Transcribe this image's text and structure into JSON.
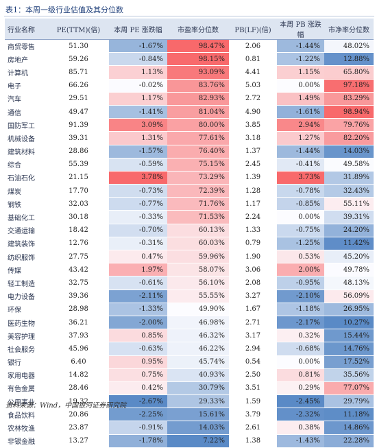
{
  "caption": "表1：本周一级行业估值及其分位数",
  "headers": [
    "行业名称",
    "PE(TTM)(倍)",
    "本周 PE 涨跌幅",
    "市盈率分位数",
    "PB(LF)(倍)",
    "本周 PB 涨跌幅",
    "市净率分位数"
  ],
  "rows": [
    [
      "商贸零售",
      "51.30",
      "-1.67%",
      "98.47%",
      "2.06",
      "-1.44%",
      "48.02%"
    ],
    [
      "房地产",
      "59.26",
      "-0.84%",
      "98.15%",
      "0.81",
      "-1.22%",
      "12.88%"
    ],
    [
      "计算机",
      "85.71",
      "1.13%",
      "93.09%",
      "4.41",
      "1.15%",
      "65.80%"
    ],
    [
      "电子",
      "66.26",
      "-0.02%",
      "83.76%",
      "5.03",
      "0.00%",
      "97.18%"
    ],
    [
      "汽车",
      "29.51",
      "1.17%",
      "82.93%",
      "2.72",
      "1.49%",
      "83.29%"
    ],
    [
      "通信",
      "49.47",
      "-1.41%",
      "81.04%",
      "4.90",
      "-1.61%",
      "98.94%"
    ],
    [
      "国防军工",
      "91.39",
      "3.09%",
      "80.00%",
      "3.85",
      "2.94%",
      "79.76%"
    ],
    [
      "机械设备",
      "39.31",
      "1.31%",
      "77.61%",
      "3.18",
      "1.27%",
      "82.20%"
    ],
    [
      "建筑材料",
      "28.86",
      "-1.57%",
      "76.40%",
      "1.37",
      "-1.44%",
      "14.03%"
    ],
    [
      "综合",
      "55.39",
      "-0.59%",
      "75.15%",
      "2.45",
      "-0.41%",
      "49.58%"
    ],
    [
      "石油石化",
      "21.15",
      "3.78%",
      "73.29%",
      "1.39",
      "3.73%",
      "31.89%"
    ],
    [
      "煤炭",
      "17.70",
      "-0.73%",
      "72.39%",
      "1.28",
      "-0.78%",
      "32.43%"
    ],
    [
      "钢铁",
      "32.03",
      "-0.77%",
      "71.76%",
      "1.17",
      "-0.85%",
      "55.11%"
    ],
    [
      "基础化工",
      "30.18",
      "-0.33%",
      "71.53%",
      "2.24",
      "0.00%",
      "39.31%"
    ],
    [
      "交通运输",
      "18.42",
      "-0.70%",
      "60.13%",
      "1.33",
      "-0.75%",
      "24.20%"
    ],
    [
      "建筑装饰",
      "12.76",
      "-0.31%",
      "60.03%",
      "0.79",
      "-1.25%",
      "11.42%"
    ],
    [
      "纺织服饰",
      "27.75",
      "0.47%",
      "59.96%",
      "1.90",
      "0.53%",
      "45.20%"
    ],
    [
      "传媒",
      "43.42",
      "1.97%",
      "58.07%",
      "3.06",
      "2.00%",
      "49.78%"
    ],
    [
      "轻工制造",
      "32.75",
      "-0.61%",
      "56.10%",
      "2.08",
      "-0.95%",
      "48.13%"
    ],
    [
      "电力设备",
      "39.36",
      "-2.11%",
      "55.55%",
      "3.27",
      "-2.10%",
      "56.09%"
    ],
    [
      "环保",
      "28.98",
      "-1.33%",
      "49.90%",
      "1.67",
      "-1.18%",
      "26.95%"
    ],
    [
      "医药生物",
      "36.21",
      "-2.00%",
      "46.98%",
      "2.71",
      "-2.17%",
      "10.27%"
    ],
    [
      "美容护理",
      "37.93",
      "0.85%",
      "46.32%",
      "3.17",
      "0.32%",
      "15.44%"
    ],
    [
      "社会服务",
      "45.96",
      "-0.63%",
      "46.22%",
      "2.94",
      "-0.68%",
      "14.76%"
    ],
    [
      "银行",
      "6.40",
      "0.95%",
      "45.74%",
      "0.54",
      "0.00%",
      "17.52%"
    ],
    [
      "家用电器",
      "14.82",
      "0.75%",
      "40.93%",
      "2.50",
      "0.81%",
      "35.56%"
    ],
    [
      "有色金属",
      "28.46",
      "0.42%",
      "30.79%",
      "3.51",
      "0.29%",
      "77.07%"
    ],
    [
      "公用事业",
      "19.32",
      "-2.67%",
      "29.33%",
      "1.59",
      "-2.45%",
      "29.79%"
    ],
    [
      "食品饮料",
      "20.86",
      "-2.25%",
      "15.61%",
      "3.79",
      "-2.32%",
      "11.18%"
    ],
    [
      "农林牧渔",
      "23.87",
      "-0.91%",
      "14.03%",
      "2.61",
      "0.38%",
      "14.86%"
    ],
    [
      "非银金融",
      "13.27",
      "-1.78%",
      "7.22%",
      "1.38",
      "-1.43%",
      "22.28%"
    ]
  ],
  "footer": "资料来源：Wind，中国银河证券研究院",
  "colors": {
    "positive": "#f8696b",
    "negative": "#5a8ac6",
    "neutral": "#fcfcff"
  }
}
